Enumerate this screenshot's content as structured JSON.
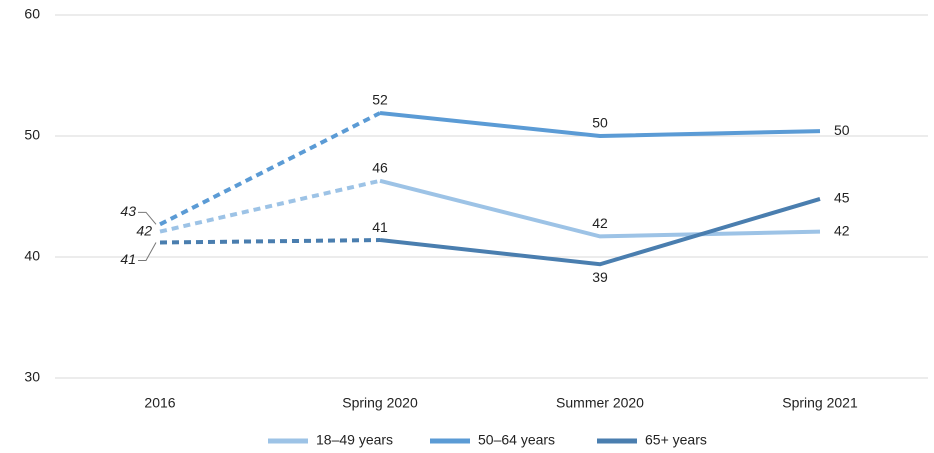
{
  "chart_data": {
    "type": "line",
    "categories": [
      "2016",
      "Spring 2020",
      "Summer 2020",
      "Spring 2021"
    ],
    "series": [
      {
        "name": "18–49 years",
        "color": "#9dc3e6",
        "values": [
          42.1,
          46.3,
          41.7,
          42.1
        ],
        "value_labels": [
          "42",
          "46",
          "42",
          "42"
        ]
      },
      {
        "name": "50–64 years",
        "color": "#5b9bd5",
        "values": [
          42.7,
          51.9,
          50.0,
          50.4
        ],
        "value_labels": [
          "43",
          "52",
          "50",
          "50"
        ]
      },
      {
        "name": "65+ years",
        "color": "#4a7eaf",
        "values": [
          41.2,
          41.4,
          39.4,
          44.8
        ],
        "value_labels": [
          "41",
          "41",
          "39",
          "45"
        ]
      }
    ],
    "ylim": [
      30,
      60
    ],
    "yticks": [
      30,
      40,
      50,
      60
    ],
    "grid": true,
    "dashed_first_segment": true,
    "legend": "bottom"
  }
}
